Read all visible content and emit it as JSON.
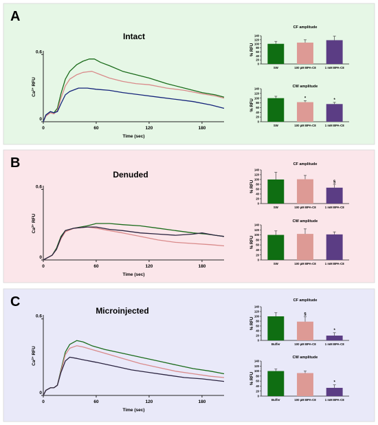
{
  "colors": {
    "panel_A_bg": "#e6f7e6",
    "panel_B_bg": "#fbe6ea",
    "panel_C_bg": "#e9e9f9",
    "green": "#1a6b1a",
    "pink": "#d98a8a",
    "navy": "#14237a",
    "dark": "#2b2440",
    "bar_green": "#0f6e12",
    "bar_pink": "#dd9a95",
    "bar_purple": "#5b3d84"
  },
  "panels": [
    {
      "letter": "A",
      "title": "Intact",
      "trace": {
        "ylabel_main": "Ca",
        "ylabel_sup": "2+",
        "ylabel_rest": " RFU",
        "xlabel": "Time (sec)",
        "x_ticks": [
          "0",
          "60",
          "120",
          "180"
        ],
        "y_ticks": [
          "0",
          "0.6"
        ]
      },
      "bars": [
        {
          "title": "CF amplitude",
          "ylabel": "% RFU",
          "y_ticks": [
            "0",
            "20",
            "40",
            "60",
            "80",
            "100",
            "120",
            "140"
          ],
          "categories": [
            "SW",
            "100 µM BPA-C8",
            "1 mM BPA-C8"
          ],
          "marks": [
            "",
            "",
            ""
          ]
        },
        {
          "title": "CW amplitude",
          "ylabel": "% RFU",
          "y_ticks": [
            "0",
            "20",
            "40",
            "60",
            "80",
            "100",
            "120",
            "140"
          ],
          "categories": [
            "SW",
            "100 µM BPA-C8",
            "1 mM BPA-C8"
          ],
          "marks": [
            "",
            "*",
            "*"
          ]
        }
      ]
    },
    {
      "letter": "B",
      "title": "Denuded",
      "trace": {
        "ylabel_main": "Ca",
        "ylabel_sup": "2+",
        "ylabel_rest": " RFU",
        "xlabel": "Time (sec)",
        "x_ticks": [
          "0",
          "60",
          "120",
          "180"
        ],
        "y_ticks": [
          "0",
          "0.6"
        ]
      },
      "bars": [
        {
          "title": "CF amplitude",
          "ylabel": "% RFU",
          "y_ticks": [
            "0",
            "20",
            "40",
            "60",
            "80",
            "100",
            "120",
            "140"
          ],
          "categories": [
            "SW",
            "100 µM BPA-C8",
            "1 mM BPA-C8"
          ],
          "marks": [
            "",
            "",
            "§"
          ]
        },
        {
          "title": "CW amplitude",
          "ylabel": "% RFU",
          "y_ticks": [
            "0",
            "20",
            "40",
            "60",
            "80",
            "100",
            "120",
            "140"
          ],
          "categories": [
            "SW",
            "100 µM BPA-C8",
            "1 mM BPA-C8"
          ],
          "marks": [
            "",
            "",
            ""
          ]
        }
      ]
    },
    {
      "letter": "C",
      "title": "Microinjected",
      "trace": {
        "ylabel_main": "Ca",
        "ylabel_sup": "2+",
        "ylabel_rest": " RFU",
        "xlabel": "Time (sec)",
        "x_ticks": [
          "0",
          "60",
          "120",
          "180"
        ],
        "y_ticks": [
          "0",
          "0.6"
        ]
      },
      "bars": [
        {
          "title": "CF amplitude",
          "ylabel": "% RFU",
          "y_ticks": [
            "0",
            "20",
            "40",
            "60",
            "80",
            "100",
            "120",
            "140"
          ],
          "categories": [
            "Buffer",
            "100 µM BPA-C8",
            "1 mM BPA-C8"
          ],
          "marks": [
            "",
            "§",
            "*"
          ]
        },
        {
          "title": "CW amplitude",
          "ylabel": "% RFU",
          "y_ticks": [
            "0",
            "20",
            "40",
            "60",
            "80",
            "100",
            "120",
            "140"
          ],
          "categories": [
            "Buffer",
            "100 µM BPA-C8",
            "1 mM BPA-C8"
          ],
          "marks": [
            "",
            "",
            "*"
          ]
        }
      ]
    }
  ],
  "chart_data": [
    {
      "panel": "A",
      "type": "line",
      "title": "Intact",
      "xlabel": "Time (sec)",
      "ylabel": "Ca2+ RFU",
      "xlim": [
        0,
        205
      ],
      "ylim": [
        0,
        0.62
      ],
      "series": [
        {
          "color": "#1a6b1a",
          "points": [
            [
              0,
              0
            ],
            [
              3,
              0.06
            ],
            [
              8,
              0.09
            ],
            [
              12,
              0.08
            ],
            [
              16,
              0.12
            ],
            [
              20,
              0.25
            ],
            [
              25,
              0.38
            ],
            [
              30,
              0.45
            ],
            [
              38,
              0.51
            ],
            [
              45,
              0.54
            ],
            [
              52,
              0.56
            ],
            [
              58,
              0.56
            ],
            [
              65,
              0.53
            ],
            [
              75,
              0.5
            ],
            [
              90,
              0.45
            ],
            [
              105,
              0.42
            ],
            [
              120,
              0.39
            ],
            [
              140,
              0.34
            ],
            [
              160,
              0.3
            ],
            [
              180,
              0.26
            ],
            [
              195,
              0.24
            ],
            [
              205,
              0.22
            ]
          ]
        },
        {
          "color": "#d98a8a",
          "points": [
            [
              0,
              0
            ],
            [
              3,
              0.05
            ],
            [
              8,
              0.08
            ],
            [
              12,
              0.07
            ],
            [
              16,
              0.1
            ],
            [
              20,
              0.21
            ],
            [
              25,
              0.32
            ],
            [
              30,
              0.38
            ],
            [
              38,
              0.42
            ],
            [
              45,
              0.44
            ],
            [
              55,
              0.45
            ],
            [
              65,
              0.42
            ],
            [
              75,
              0.39
            ],
            [
              90,
              0.36
            ],
            [
              105,
              0.34
            ],
            [
              120,
              0.33
            ],
            [
              140,
              0.3
            ],
            [
              160,
              0.28
            ],
            [
              180,
              0.25
            ],
            [
              195,
              0.23
            ],
            [
              205,
              0.21
            ]
          ]
        },
        {
          "color": "#14237a",
          "points": [
            [
              0,
              0
            ],
            [
              3,
              0.06
            ],
            [
              8,
              0.09
            ],
            [
              12,
              0.08
            ],
            [
              16,
              0.09
            ],
            [
              20,
              0.16
            ],
            [
              25,
              0.24
            ],
            [
              30,
              0.27
            ],
            [
              40,
              0.3
            ],
            [
              50,
              0.3
            ],
            [
              60,
              0.29
            ],
            [
              75,
              0.28
            ],
            [
              90,
              0.26
            ],
            [
              110,
              0.24
            ],
            [
              130,
              0.22
            ],
            [
              150,
              0.2
            ],
            [
              170,
              0.18
            ],
            [
              190,
              0.15
            ],
            [
              205,
              0.12
            ]
          ]
        }
      ]
    },
    {
      "panel": "A",
      "type": "bar",
      "title": "CF amplitude",
      "ylabel": "% RFU",
      "ylim": [
        0,
        140
      ],
      "categories": [
        "SW",
        "100 µM BPA-C8",
        "1 mM BPA-C8"
      ],
      "values": [
        100,
        106,
        118
      ],
      "errors": [
        12,
        14,
        20
      ]
    },
    {
      "panel": "A",
      "type": "bar",
      "title": "CW amplitude",
      "ylabel": "% RFU",
      "ylim": [
        0,
        140
      ],
      "categories": [
        "SW",
        "100 µM BPA-C8",
        "1 mM BPA-C8"
      ],
      "values": [
        100,
        83,
        75
      ],
      "errors": [
        8,
        6,
        7
      ]
    },
    {
      "panel": "B",
      "type": "line",
      "title": "Denuded",
      "xlabel": "Time (sec)",
      "ylabel": "Ca2+ RFU",
      "xlim": [
        0,
        205
      ],
      "ylim": [
        0,
        0.62
      ],
      "series": [
        {
          "color": "#1a6b1a",
          "points": [
            [
              0,
              0
            ],
            [
              5,
              0.02
            ],
            [
              10,
              0.04
            ],
            [
              15,
              0.1
            ],
            [
              20,
              0.2
            ],
            [
              25,
              0.25
            ],
            [
              35,
              0.27
            ],
            [
              50,
              0.29
            ],
            [
              60,
              0.31
            ],
            [
              75,
              0.31
            ],
            [
              90,
              0.3
            ],
            [
              110,
              0.29
            ],
            [
              130,
              0.27
            ],
            [
              150,
              0.25
            ],
            [
              170,
              0.23
            ],
            [
              185,
              0.22
            ],
            [
              195,
              0.21
            ],
            [
              205,
              0.2
            ]
          ]
        },
        {
          "color": "#d98a8a",
          "points": [
            [
              0,
              0
            ],
            [
              5,
              0.02
            ],
            [
              10,
              0.04
            ],
            [
              15,
              0.09
            ],
            [
              20,
              0.18
            ],
            [
              25,
              0.24
            ],
            [
              35,
              0.27
            ],
            [
              50,
              0.28
            ],
            [
              60,
              0.27
            ],
            [
              75,
              0.25
            ],
            [
              90,
              0.23
            ],
            [
              110,
              0.2
            ],
            [
              130,
              0.17
            ],
            [
              150,
              0.15
            ],
            [
              170,
              0.14
            ],
            [
              190,
              0.13
            ],
            [
              205,
              0.12
            ]
          ]
        },
        {
          "color": "#2b2440",
          "points": [
            [
              0,
              0
            ],
            [
              5,
              0.02
            ],
            [
              10,
              0.04
            ],
            [
              15,
              0.09
            ],
            [
              20,
              0.19
            ],
            [
              25,
              0.25
            ],
            [
              35,
              0.27
            ],
            [
              50,
              0.28
            ],
            [
              60,
              0.28
            ],
            [
              75,
              0.26
            ],
            [
              90,
              0.25
            ],
            [
              110,
              0.23
            ],
            [
              130,
              0.22
            ],
            [
              150,
              0.21
            ],
            [
              170,
              0.22
            ],
            [
              180,
              0.23
            ],
            [
              195,
              0.21
            ],
            [
              205,
              0.2
            ]
          ]
        }
      ]
    },
    {
      "panel": "B",
      "type": "bar",
      "title": "CF amplitude",
      "ylabel": "% RFU",
      "ylim": [
        0,
        140
      ],
      "categories": [
        "SW",
        "100 µM BPA-C8",
        "1 mM BPA-C8"
      ],
      "values": [
        100,
        101,
        66
      ],
      "errors": [
        30,
        16,
        14
      ]
    },
    {
      "panel": "B",
      "type": "bar",
      "title": "CW amplitude",
      "ylabel": "% RFU",
      "ylim": [
        0,
        140
      ],
      "categories": [
        "SW",
        "100 µM BPA-C8",
        "1 mM BPA-C8"
      ],
      "values": [
        100,
        104,
        102
      ],
      "errors": [
        16,
        20,
        10
      ]
    },
    {
      "panel": "C",
      "type": "line",
      "title": "Microinjected",
      "xlabel": "Time (sec)",
      "ylabel": "Ca2+ RFU",
      "xlim": [
        0,
        205
      ],
      "ylim": [
        0,
        0.62
      ],
      "series": [
        {
          "color": "#1a6b1a",
          "points": [
            [
              0,
              0
            ],
            [
              3,
              0.04
            ],
            [
              8,
              0.06
            ],
            [
              12,
              0.06
            ],
            [
              16,
              0.08
            ],
            [
              20,
              0.2
            ],
            [
              25,
              0.34
            ],
            [
              30,
              0.4
            ],
            [
              38,
              0.43
            ],
            [
              45,
              0.42
            ],
            [
              55,
              0.39
            ],
            [
              70,
              0.36
            ],
            [
              90,
              0.33
            ],
            [
              110,
              0.3
            ],
            [
              130,
              0.27
            ],
            [
              150,
              0.24
            ],
            [
              170,
              0.21
            ],
            [
              190,
              0.19
            ],
            [
              205,
              0.17
            ]
          ]
        },
        {
          "color": "#d98a8a",
          "points": [
            [
              0,
              0
            ],
            [
              3,
              0.04
            ],
            [
              8,
              0.06
            ],
            [
              12,
              0.06
            ],
            [
              16,
              0.08
            ],
            [
              20,
              0.19
            ],
            [
              25,
              0.32
            ],
            [
              30,
              0.37
            ],
            [
              38,
              0.39
            ],
            [
              45,
              0.38
            ],
            [
              55,
              0.36
            ],
            [
              70,
              0.33
            ],
            [
              90,
              0.29
            ],
            [
              110,
              0.25
            ],
            [
              130,
              0.22
            ],
            [
              150,
              0.19
            ],
            [
              170,
              0.17
            ],
            [
              190,
              0.15
            ],
            [
              205,
              0.14
            ]
          ]
        },
        {
          "color": "#2b2440",
          "points": [
            [
              0,
              0
            ],
            [
              3,
              0.04
            ],
            [
              8,
              0.06
            ],
            [
              12,
              0.06
            ],
            [
              16,
              0.08
            ],
            [
              20,
              0.18
            ],
            [
              25,
              0.27
            ],
            [
              30,
              0.3
            ],
            [
              38,
              0.29
            ],
            [
              45,
              0.28
            ],
            [
              60,
              0.26
            ],
            [
              80,
              0.23
            ],
            [
              100,
              0.2
            ],
            [
              120,
              0.18
            ],
            [
              140,
              0.16
            ],
            [
              160,
              0.14
            ],
            [
              180,
              0.13
            ],
            [
              205,
              0.11
            ]
          ]
        }
      ]
    },
    {
      "panel": "C",
      "type": "bar",
      "title": "CF amplitude",
      "ylabel": "% RFU",
      "ylim": [
        0,
        140
      ],
      "categories": [
        "Buffer",
        "100 µM BPA-C8",
        "1 mM BPA-C8"
      ],
      "values": [
        100,
        78,
        20
      ],
      "errors": [
        15,
        20,
        12
      ]
    },
    {
      "panel": "C",
      "type": "bar",
      "title": "CW amplitude",
      "ylabel": "% RFU",
      "ylim": [
        0,
        140
      ],
      "categories": [
        "Buffer",
        "100 µM BPA-C8",
        "1 mM BPA-C8"
      ],
      "values": [
        100,
        92,
        33
      ],
      "errors": [
        8,
        8,
        12
      ]
    }
  ]
}
